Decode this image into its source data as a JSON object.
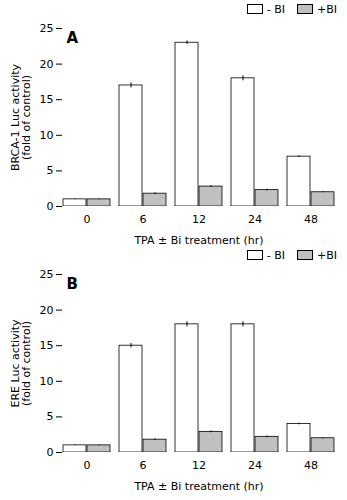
{
  "chart_data": [
    {
      "type": "bar",
      "title": "A",
      "ylabel": "BRCA-1 Luc activity\n(fold of control)",
      "xlabel": "TPA ± Bi treatment (hr)",
      "categories": [
        "0",
        "6",
        "12",
        "24",
        "48"
      ],
      "series": [
        {
          "name": "- BI",
          "color": "#ffffff",
          "values": [
            1.0,
            17.0,
            23.0,
            18.0,
            7.0
          ],
          "errors": [
            0.05,
            0.35,
            0.25,
            0.35,
            0.12
          ]
        },
        {
          "name": "+BI",
          "color": "#c0c0c0",
          "values": [
            1.0,
            1.8,
            2.8,
            2.3,
            2.0
          ],
          "errors": [
            0.05,
            0.12,
            0.12,
            0.12,
            0.08
          ]
        }
      ],
      "ylim": [
        0,
        25
      ],
      "yticks": [
        0,
        5,
        10,
        15,
        20,
        25
      ],
      "legend": "upper right"
    },
    {
      "type": "bar",
      "title": "B",
      "ylabel": "ERE Luc activity\n(fold of control)",
      "xlabel": "TPA ± Bi treatment (hr)",
      "categories": [
        "0",
        "6",
        "12",
        "24",
        "48"
      ],
      "series": [
        {
          "name": "- BI",
          "color": "#ffffff",
          "values": [
            1.0,
            15.0,
            18.0,
            18.0,
            4.0
          ],
          "errors": [
            0.05,
            0.3,
            0.35,
            0.35,
            0.12
          ]
        },
        {
          "name": "+BI",
          "color": "#c0c0c0",
          "values": [
            1.0,
            1.8,
            2.9,
            2.2,
            2.0
          ],
          "errors": [
            0.05,
            0.12,
            0.12,
            0.12,
            0.08
          ]
        }
      ],
      "ylim": [
        0,
        25
      ],
      "yticks": [
        0,
        5,
        10,
        15,
        20,
        25
      ],
      "legend": "upper right"
    }
  ]
}
